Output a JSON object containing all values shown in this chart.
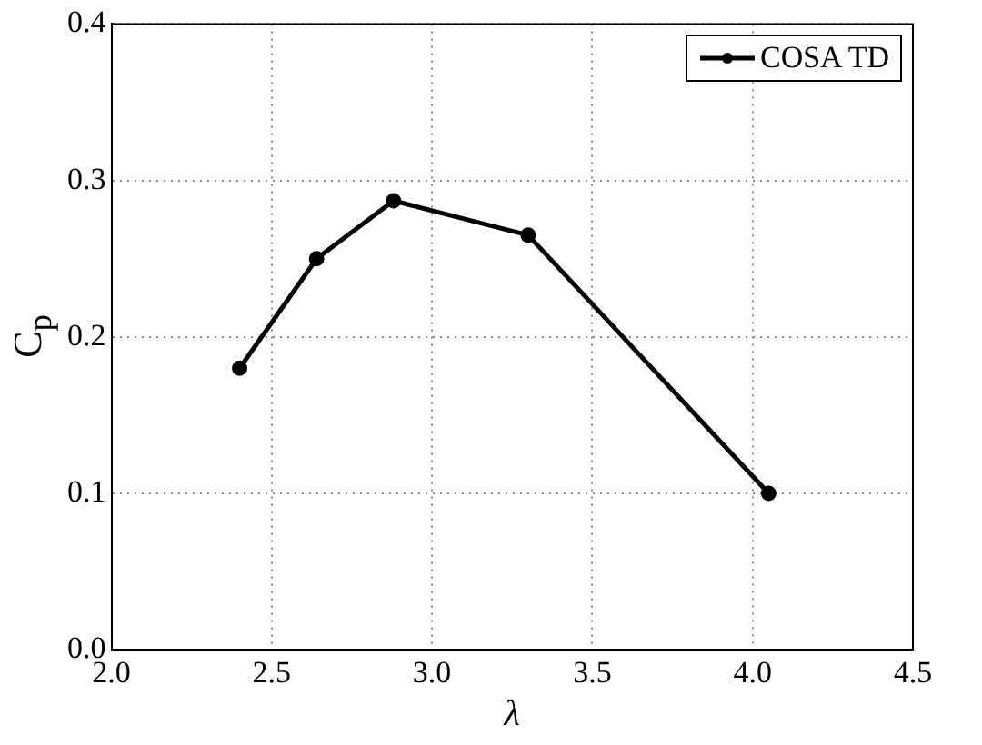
{
  "chart_data": {
    "type": "line",
    "xlabel": "λ",
    "ylabel": "C$_{p}$",
    "x": [
      2.4,
      2.64,
      2.88,
      3.3,
      4.05
    ],
    "series": [
      {
        "name": "COSA TD",
        "color": "#000000",
        "values": [
          0.18,
          0.25,
          0.287,
          0.265,
          0.1
        ]
      }
    ],
    "xlim": [
      2,
      4.5
    ],
    "xticks": [
      {
        "value": 2,
        "label": "2.0"
      },
      {
        "value": 2.5,
        "label": "2.5"
      },
      {
        "value": 3,
        "label": "3.0"
      },
      {
        "value": 3.5,
        "label": "3.5"
      },
      {
        "value": 4,
        "label": "4.0"
      },
      {
        "value": 4.5,
        "label": "4.5"
      }
    ],
    "ylim": [
      0,
      0.4
    ],
    "yticks": [
      {
        "value": 0,
        "label": "0.0"
      },
      {
        "value": 0.1,
        "label": "0.1"
      },
      {
        "value": 0.2,
        "label": "0.2"
      },
      {
        "value": 0.3,
        "label": "0.3"
      },
      {
        "value": 0.4,
        "label": "0.4"
      }
    ],
    "grid": true,
    "legend": "top right",
    "marker": "circle",
    "line_style": "solid"
  }
}
